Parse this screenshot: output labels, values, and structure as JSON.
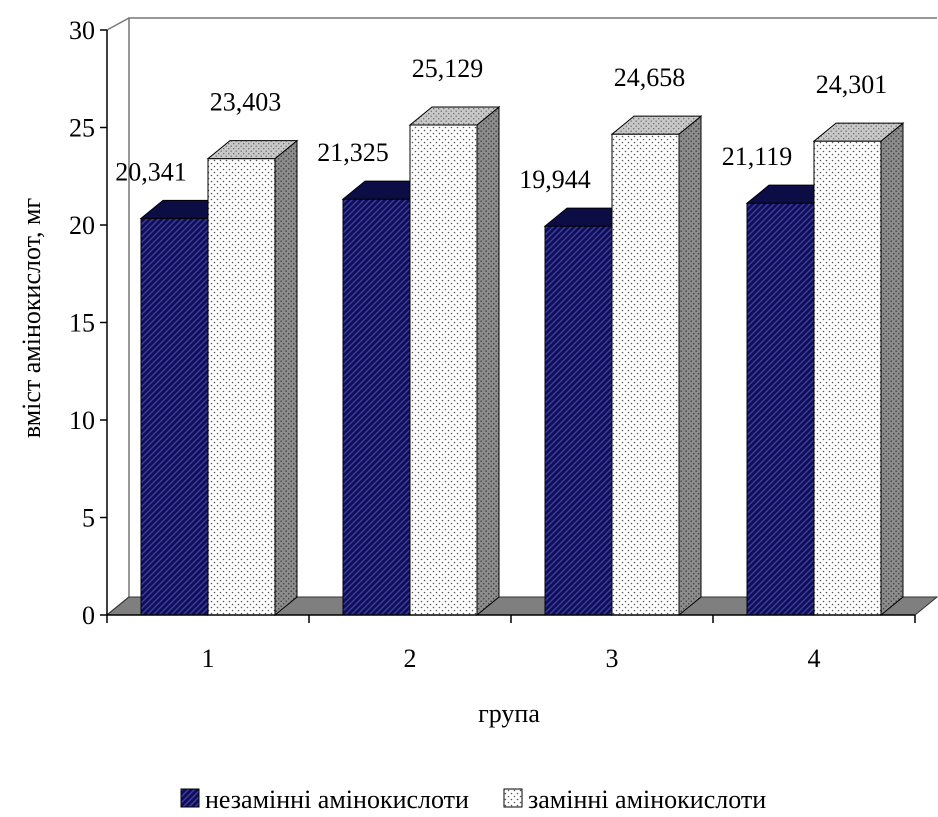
{
  "chart_data": {
    "type": "bar",
    "categories": [
      "1",
      "2",
      "3",
      "4"
    ],
    "series": [
      {
        "name": "незамінні амінокислоти",
        "values": [
          20.341,
          21.325,
          19.944,
          21.119
        ],
        "labels": [
          "20,341",
          "21,325",
          "19,944",
          "21,119"
        ],
        "color": "#1a1a6e"
      },
      {
        "name": "замінні амінокислоти",
        "values": [
          23.403,
          25.129,
          24.658,
          24.301
        ],
        "labels": [
          "23,403",
          "25,129",
          "24,658",
          "24,301"
        ],
        "color": "#ffffff"
      }
    ],
    "xlabel": "група",
    "ylabel": "вміст амінокислот, мг",
    "ylim": [
      0,
      30
    ],
    "yticks": [
      "0",
      "5",
      "10",
      "15",
      "20",
      "25",
      "30"
    ],
    "grid": false,
    "legend_position": "bottom",
    "three_d": true
  }
}
